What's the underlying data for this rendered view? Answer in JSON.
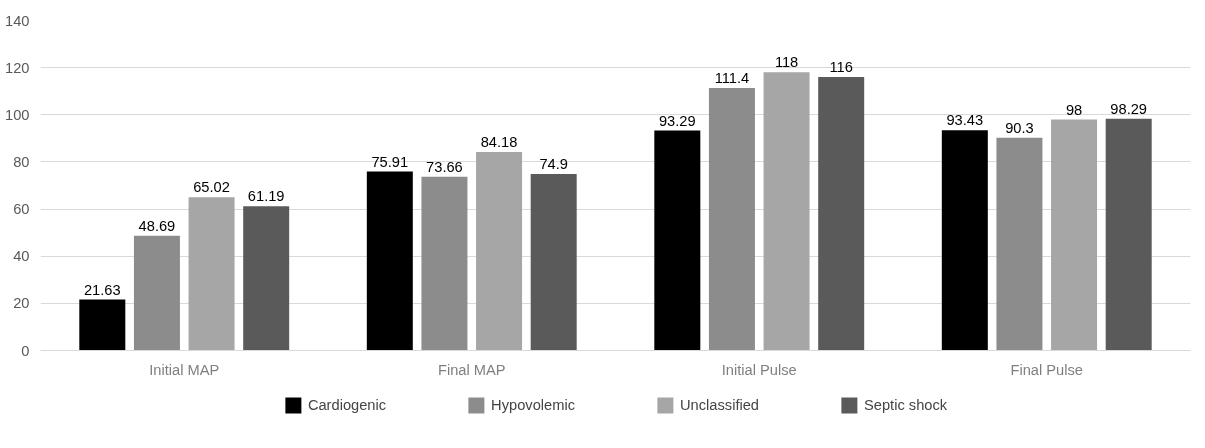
{
  "chart_data": {
    "type": "bar",
    "categories": [
      "Initial MAP",
      "Final MAP",
      "Initial Pulse",
      "Final Pulse"
    ],
    "series": [
      {
        "name": "Cardiogenic",
        "color": "#000000",
        "values": [
          21.63,
          75.91,
          93.29,
          93.43
        ]
      },
      {
        "name": "Hypovolemic",
        "color": "#8c8c8c",
        "values": [
          48.69,
          73.66,
          111.4,
          90.3
        ]
      },
      {
        "name": "Unclassified",
        "color": "#a6a6a6",
        "values": [
          65.02,
          84.18,
          118,
          98
        ]
      },
      {
        "name": "Septic shock",
        "color": "#5a5a5a",
        "values": [
          61.19,
          74.9,
          116,
          98.29
        ]
      }
    ],
    "ylim": [
      0,
      140
    ],
    "yticks": [
      0,
      20,
      40,
      60,
      80,
      100,
      120,
      140
    ],
    "grid": "y",
    "legend": "bottom",
    "data_labels": true
  }
}
